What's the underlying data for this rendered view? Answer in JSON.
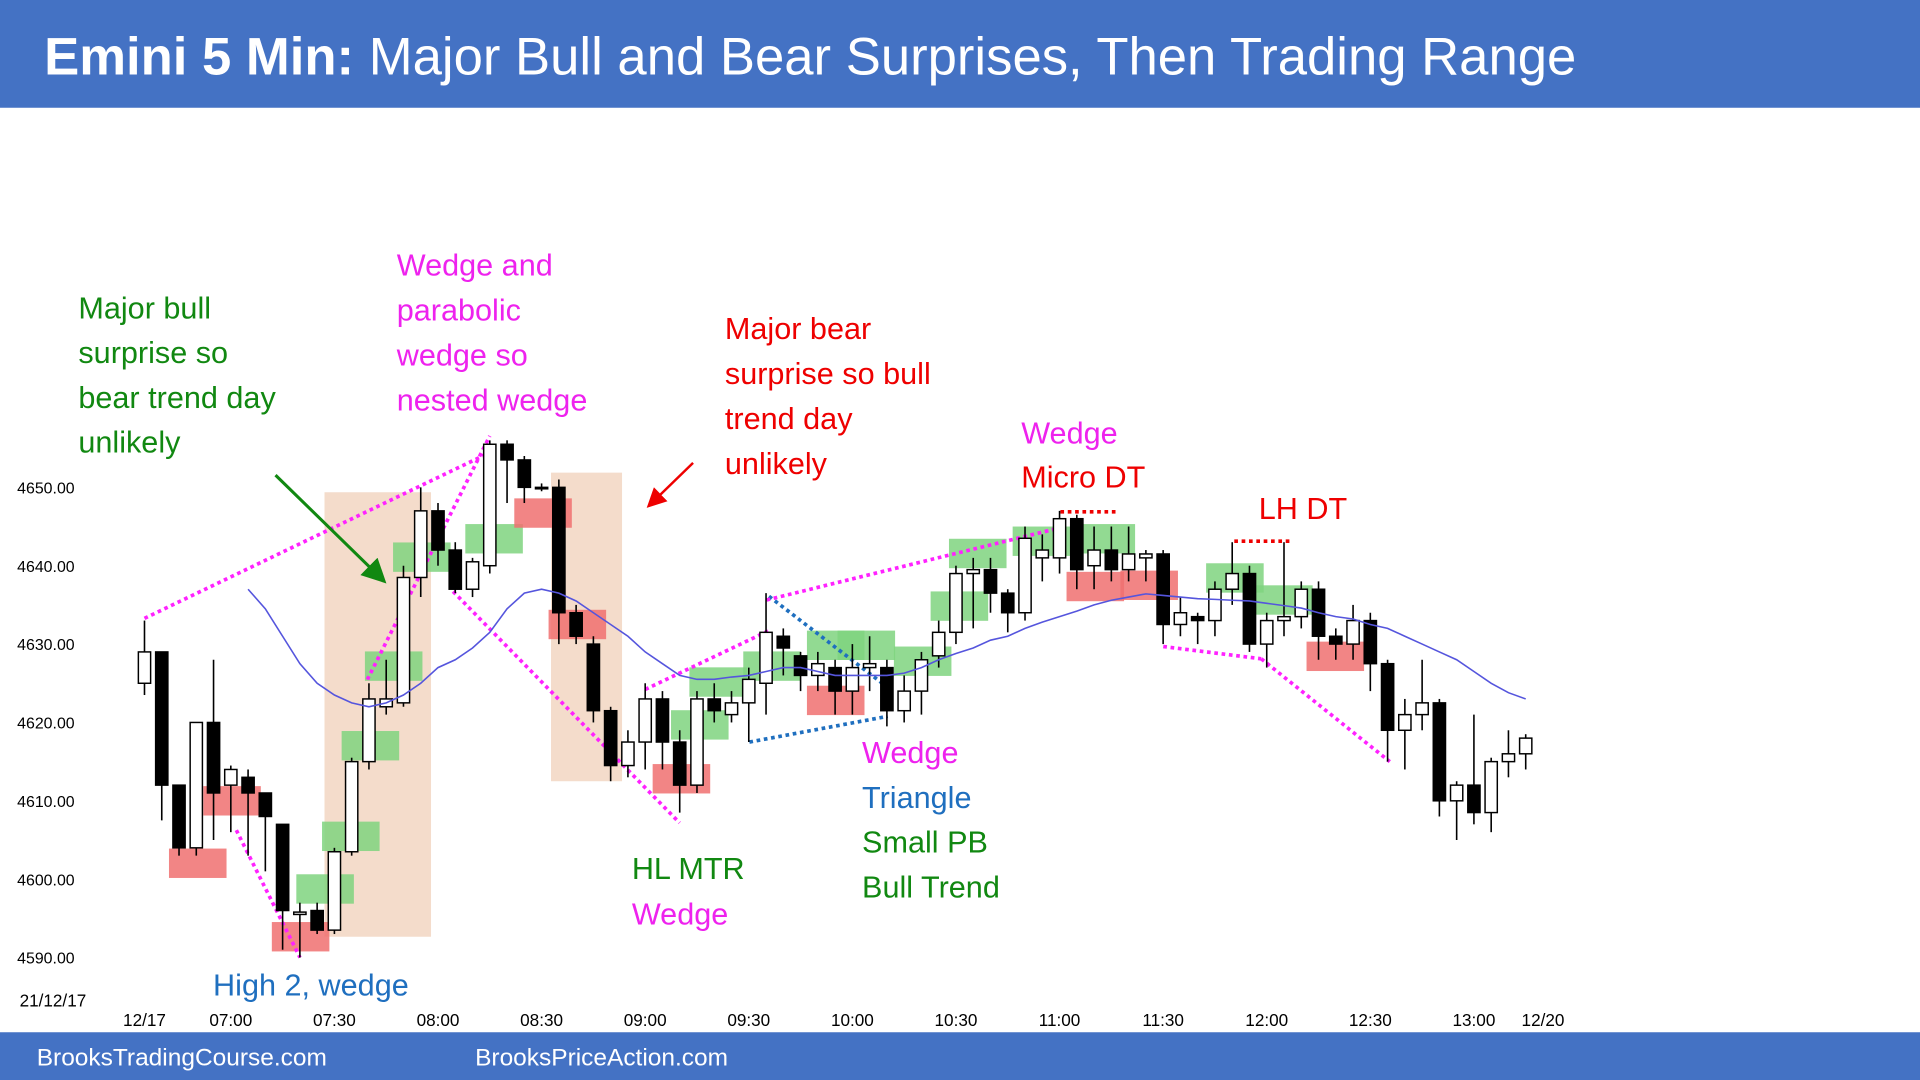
{
  "chart_data": {
    "type": "candlestick",
    "title_bold": "Emini 5 Min:",
    "title": "Major Bull and Bear Surprises, Then Trading Range",
    "date_label": "21/12/17",
    "footer_left": "BrooksTradingCourse.com",
    "footer_right": "BrooksPriceAction.com",
    "categories": [
      "12/17",
      null,
      null,
      null,
      null,
      "07:00",
      null,
      null,
      null,
      null,
      null,
      "07:30",
      null,
      null,
      null,
      null,
      null,
      "08:00",
      null,
      null,
      null,
      null,
      null,
      "08:30",
      null,
      null,
      null,
      null,
      null,
      "09:00",
      null,
      null,
      null,
      null,
      null,
      "09:30",
      null,
      null,
      null,
      null,
      null,
      "10:00",
      null,
      null,
      null,
      null,
      null,
      "10:30",
      null,
      null,
      null,
      null,
      null,
      "11:00",
      null,
      null,
      null,
      null,
      null,
      "11:30",
      null,
      null,
      null,
      null,
      null,
      "12:00",
      null,
      null,
      null,
      null,
      null,
      "12:30",
      null,
      null,
      null,
      null,
      null,
      "13:00",
      null,
      null,
      null,
      "12/20"
    ],
    "open": [
      4625,
      4629,
      4612,
      4604,
      4620,
      4612,
      4613,
      4611,
      4607,
      4595.5,
      4596,
      4593.5,
      4603.5,
      4615,
      4622,
      4622.5,
      4638.5,
      4647,
      4642,
      4637,
      4640,
      4655.5,
      4653.5,
      4650,
      4650,
      4634,
      4630,
      4621.5,
      4614.5,
      4617.5,
      4623,
      4617.5,
      4612,
      4623,
      4621,
      4622.5,
      4625,
      4631,
      4628.5,
      4626,
      4627,
      4624,
      4627,
      4627,
      4621.5,
      4624,
      4628.5,
      4631.5,
      4639,
      4639.5,
      4636.5,
      4634,
      4641,
      4641,
      4646,
      4640,
      4642,
      4639.5,
      4641,
      4641.5,
      4632.5,
      4633.5,
      4633,
      4637,
      4639,
      4630,
      4633,
      4633.5,
      4637,
      4631,
      4630,
      4633,
      4627.5,
      4619,
      4621,
      4622.5,
      4610,
      4612,
      4608.5,
      4615,
      4616,
      null
    ],
    "high": [
      4633,
      4629,
      4612,
      4620,
      4628,
      4614.5,
      4614,
      4611,
      4607,
      4597,
      4597,
      4604,
      4615.5,
      4625,
      4628,
      4640,
      4650,
      4648,
      4643,
      4641,
      4656,
      4656,
      4654,
      4650.5,
      4651,
      4635,
      4631,
      4622,
      4619,
      4625,
      4624,
      4619,
      4624,
      4625,
      4624,
      4627,
      4636.5,
      4632,
      4629,
      4629,
      4628,
      4630,
      4631,
      4628,
      4626,
      4629,
      4633,
      4640,
      4641,
      4641,
      4637,
      4645,
      4644,
      4647,
      4646.5,
      4645,
      4645,
      4645,
      4642,
      4642,
      4636,
      4634,
      4638,
      4643,
      4640,
      4634,
      4643,
      4638,
      4638,
      4632,
      4635,
      4634,
      4628,
      4623,
      4628,
      4623,
      4612.5,
      4621,
      4615.5,
      4619,
      4618.5,
      null
    ],
    "low": [
      4623.5,
      4607.5,
      4603,
      4603,
      4605,
      4606,
      4603,
      4601,
      4591,
      4590,
      4593,
      4593,
      4603,
      4614,
      4621,
      4622,
      4636,
      4640,
      4636.5,
      4636,
      4639,
      4648,
      4648,
      4649.5,
      4630,
      4630,
      4620,
      4612.5,
      4613,
      4614,
      4614,
      4608.5,
      4611,
      4620,
      4620,
      4617.5,
      4621,
      4626,
      4624,
      4624,
      4621,
      4621,
      4624,
      4619.5,
      4620,
      4621,
      4627,
      4630,
      4632,
      4634,
      4631.5,
      4633,
      4638,
      4639,
      4637,
      4637,
      4638,
      4638,
      4638,
      4630,
      4631,
      4630,
      4631,
      4635,
      4629,
      4627,
      4631,
      4632,
      4628,
      4628,
      4628,
      4624,
      4615,
      4614,
      4619,
      4608,
      4605,
      4607,
      4606,
      4613,
      4614,
      null
    ],
    "close": [
      4629,
      4612,
      4604,
      4620,
      4611,
      4614,
      4611,
      4608,
      4596,
      4595.8,
      4593.5,
      4603.5,
      4615,
      4623,
      4623,
      4638.5,
      4647,
      4642,
      4637,
      4640.5,
      4655.5,
      4653.5,
      4650,
      4650,
      4634,
      4631,
      4621.5,
      4614.5,
      4617.5,
      4623,
      4617.5,
      4612,
      4623,
      4621.5,
      4622.5,
      4625.5,
      4631.5,
      4629.5,
      4626,
      4627.5,
      4624,
      4627,
      4627.5,
      4621.5,
      4624,
      4628,
      4631.5,
      4639,
      4639.5,
      4636.5,
      4634,
      4643.5,
      4642,
      4646,
      4639.5,
      4642,
      4639.5,
      4641.5,
      4641.5,
      4632.5,
      4634,
      4633,
      4637,
      4639,
      4630,
      4633,
      4633.5,
      4637,
      4631,
      4630,
      4633,
      4627.5,
      4619,
      4621,
      4622.5,
      4610,
      4612,
      4608.5,
      4615,
      4616,
      4618,
      null
    ],
    "up_color": "#ffffff",
    "down_color": "#000000",
    "moving_average": {
      "color": "#5555dd",
      "values": [
        null,
        null,
        null,
        null,
        null,
        null,
        4637,
        4634.5,
        4631,
        4627.5,
        4625,
        4623.5,
        4622.5,
        4622,
        4622.5,
        4623.5,
        4625,
        4627,
        4628,
        4629.5,
        4631.5,
        4634.5,
        4636.5,
        4637,
        4636.5,
        4635.5,
        4634,
        4632.5,
        4631,
        4629,
        4627.5,
        4626,
        4625.5,
        4625.5,
        4625.8,
        4626,
        4626.5,
        4627,
        4627,
        4626.5,
        4626,
        4626,
        4626,
        4626,
        4626.3,
        4627,
        4628,
        4628.8,
        4629.5,
        4630.5,
        4631,
        4632,
        4632.8,
        4633.5,
        4634.2,
        4635,
        4635.6,
        4636,
        4636.4,
        4636.2,
        4636,
        4635.8,
        4635.7,
        4635.6,
        4635.5,
        4635.2,
        4634.9,
        4634.6,
        4634,
        4633.5,
        4633.2,
        4632.5,
        4632,
        4631,
        4630,
        4629,
        4628,
        4626.5,
        4625,
        4623.8,
        4623,
        null
      ]
    },
    "ylim": [
      4585,
      4665
    ],
    "yticks": [
      {
        "value": 4590,
        "label": "4590.00"
      },
      {
        "value": 4600,
        "label": "4600.00"
      },
      {
        "value": 4610,
        "label": "4610.00"
      },
      {
        "value": 4620,
        "label": "4620.00"
      },
      {
        "value": 4630,
        "label": "4630.00"
      },
      {
        "value": 4640,
        "label": "4640.00"
      },
      {
        "value": 4650,
        "label": "4650.00"
      }
    ],
    "grid": false,
    "annotations": [
      {
        "lines": [
          {
            "text": "Major bull",
            "color": "#118811"
          },
          {
            "text": "surprise so",
            "color": "#118811"
          },
          {
            "text": "bear trend day",
            "color": "#118811"
          },
          {
            "text": "unlikely",
            "color": "#118811"
          }
        ]
      },
      {
        "lines": [
          {
            "text": "Wedge and",
            "color": "#ee22ee"
          },
          {
            "text": "parabolic",
            "color": "#ee22ee"
          },
          {
            "text": "wedge so",
            "color": "#ee22ee"
          },
          {
            "text": "nested wedge",
            "color": "#ee22ee"
          }
        ]
      },
      {
        "lines": [
          {
            "text": "Major bear",
            "color": "#ee0000"
          },
          {
            "text": "surprise so bull",
            "color": "#ee0000"
          },
          {
            "text": "trend day",
            "color": "#ee0000"
          },
          {
            "text": "unlikely",
            "color": "#ee0000"
          }
        ]
      },
      {
        "lines": [
          {
            "text": "Wedge",
            "color": "#ee22ee"
          },
          {
            "text": "Micro DT",
            "color": "#ee0000"
          }
        ]
      },
      {
        "lines": [
          {
            "text": "LH DT",
            "color": "#ee0000"
          }
        ]
      },
      {
        "lines": [
          {
            "text": "High 2, wedge",
            "color": "#1f6fbf"
          }
        ]
      },
      {
        "lines": [
          {
            "text": "HL MTR",
            "color": "#118811"
          },
          {
            "text": "Wedge",
            "color": "#ee22ee"
          }
        ]
      },
      {
        "lines": [
          {
            "text": "Wedge",
            "color": "#ee22ee"
          },
          {
            "text": "Triangle",
            "color": "#1f6fbf"
          },
          {
            "text": "Small PB",
            "color": "#118811"
          },
          {
            "text": "Bull Trend",
            "color": "#118811"
          }
        ]
      }
    ]
  }
}
